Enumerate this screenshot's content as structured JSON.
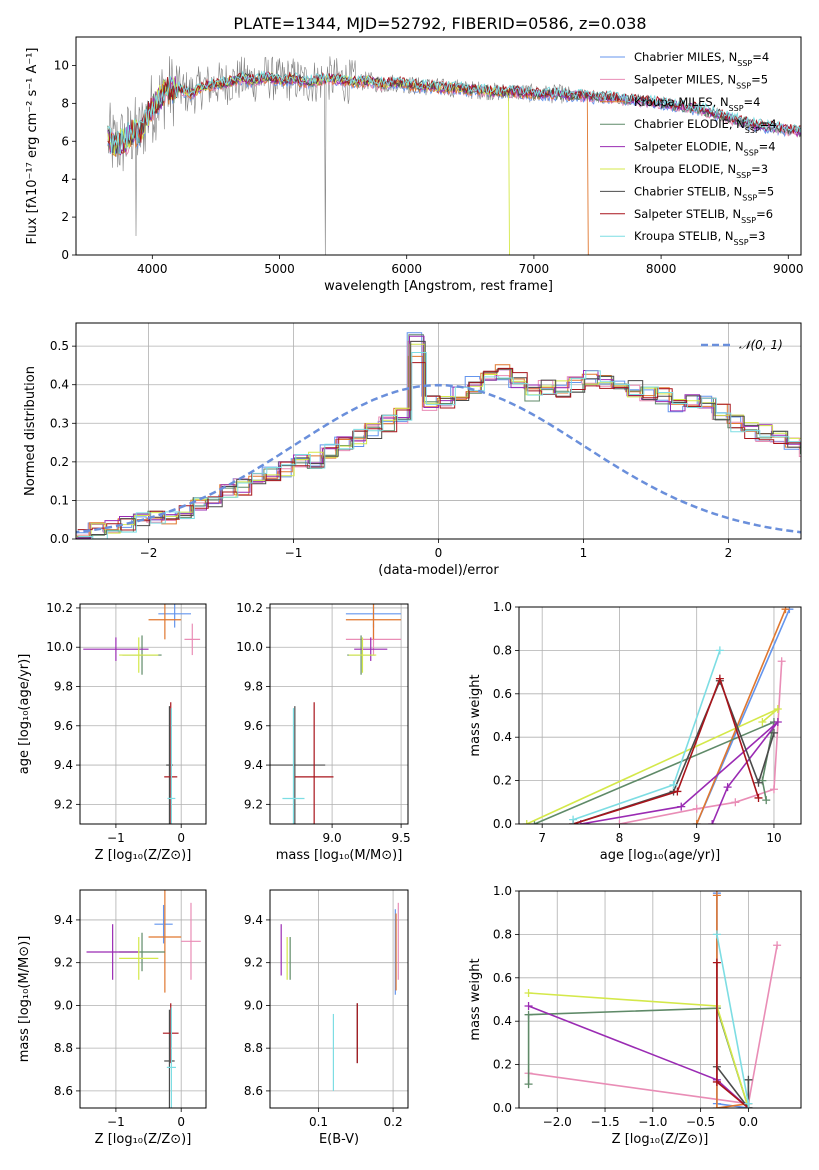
{
  "figure": {
    "title": "PLATE=1344, MJD=52792, FIBERID=0586, z=0.038"
  },
  "colors": {
    "Chabrier MILES": "#6495ED",
    "Salpeter MILES": "#E98DB6",
    "Kroupa MILES": "#E0772F",
    "Chabrier ELODIE": "#5F8A68",
    "Salpeter ELODIE": "#9A2BB3",
    "Kroupa ELODIE": "#D4E84A",
    "Chabrier STELIB": "#4B4B4B",
    "Salpeter STELIB": "#A8141B",
    "Kroupa STELIB": "#7DDDE3",
    "data": "#808080",
    "normal": "#6A8FDB"
  },
  "chart_data": [
    {
      "id": "spectrum",
      "type": "line",
      "xlabel": "wavelength [Angstrom, rest frame]",
      "ylabel": "Flux [fλ10⁻¹⁷ erg cm⁻² s⁻¹ A⁻¹]",
      "xlim": [
        3400,
        9100
      ],
      "ylim": [
        0,
        11.5
      ],
      "xticks": [
        4000,
        5000,
        6000,
        7000,
        8000,
        9000
      ],
      "yticks": [
        0,
        2,
        4,
        6,
        8,
        10
      ],
      "grid": false,
      "legend_position": "top-right",
      "legend": [
        {
          "name": "Chabrier MILES",
          "nssp": "4"
        },
        {
          "name": "Salpeter MILES",
          "nssp": "5"
        },
        {
          "name": "Kroupa MILES",
          "nssp": "4"
        },
        {
          "name": "Chabrier ELODIE",
          "nssp": "4"
        },
        {
          "name": "Salpeter ELODIE",
          "nssp": "4"
        },
        {
          "name": "Kroupa ELODIE",
          "nssp": "3"
        },
        {
          "name": "Chabrier STELIB",
          "nssp": "5"
        },
        {
          "name": "Salpeter STELIB",
          "nssp": "6"
        },
        {
          "name": "Kroupa STELIB",
          "nssp": "3"
        }
      ],
      "continuum": {
        "wavelength": [
          3650,
          3700,
          3750,
          3800,
          3850,
          3900,
          3950,
          4000,
          4050,
          4100,
          4200,
          4300,
          4400,
          4500,
          4600,
          4700,
          4800,
          4900,
          5000,
          5100,
          5200,
          5300,
          5400,
          5500,
          5600,
          5700,
          5800,
          5900,
          6000,
          6100,
          6200,
          6300,
          6400,
          6500,
          6600,
          6700,
          6800,
          6900,
          7000,
          7100,
          7200,
          7300,
          7400,
          7500,
          7600,
          7700,
          7800,
          7900,
          8000,
          8100,
          8200,
          8300,
          8400,
          8500,
          8600,
          8700,
          8800,
          8900,
          9000,
          9100
        ],
        "flux": [
          6.2,
          5.8,
          5.9,
          6.1,
          6.5,
          6.3,
          7.2,
          7.8,
          8.2,
          8.6,
          8.8,
          8.5,
          8.9,
          9.0,
          9.1,
          9.3,
          9.2,
          9.4,
          9.2,
          9.3,
          9.1,
          9.2,
          9.3,
          9.2,
          9.1,
          9.2,
          9.0,
          9.1,
          9.0,
          8.9,
          8.9,
          8.8,
          8.8,
          8.7,
          8.7,
          8.6,
          8.6,
          8.6,
          8.5,
          8.5,
          8.5,
          8.4,
          8.4,
          8.3,
          8.3,
          8.2,
          8.2,
          8.1,
          8.0,
          7.9,
          7.8,
          7.7,
          7.5,
          7.3,
          7.1,
          6.9,
          6.8,
          6.7,
          6.6,
          6.5
        ]
      },
      "cutoffs": [
        {
          "series": "Kroupa MILES",
          "max_wavelength": 7420
        },
        {
          "series": "Kroupa ELODIE",
          "max_wavelength": 6800
        }
      ]
    },
    {
      "id": "residuals",
      "type": "step",
      "xlabel": "(data-model)/error",
      "ylabel": "Normed distribution",
      "xlim": [
        -2.5,
        2.5
      ],
      "ylim": [
        0,
        0.56
      ],
      "xticks": [
        -2,
        -1,
        0,
        1,
        2
      ],
      "yticks": [
        0.0,
        0.1,
        0.2,
        0.3,
        0.4,
        0.5
      ],
      "grid": true,
      "legend_position": "top-right",
      "legend": [
        "𝒩(0, 1)"
      ],
      "bin_width": 0.1,
      "bin_start": -2.5,
      "base_histogram": [
        0.018,
        0.022,
        0.028,
        0.04,
        0.048,
        0.055,
        0.06,
        0.068,
        0.085,
        0.1,
        0.12,
        0.135,
        0.15,
        0.165,
        0.18,
        0.2,
        0.205,
        0.225,
        0.25,
        0.262,
        0.28,
        0.3,
        0.32,
        0.335,
        0.35,
        0.36,
        0.38,
        0.4,
        0.415,
        0.43,
        0.41,
        0.38,
        0.39,
        0.39,
        0.4,
        0.415,
        0.41,
        0.405,
        0.39,
        0.38,
        0.37,
        0.35,
        0.36,
        0.35,
        0.33,
        0.3,
        0.28,
        0.275,
        0.26,
        0.24,
        0.23,
        0.2,
        0.18,
        0.15,
        0.13,
        0.11,
        0.09,
        0.08,
        0.075,
        0.07,
        0.065,
        0.058,
        0.05,
        0.045,
        0.04,
        0.035,
        0.033,
        0.03,
        0.032,
        0.034,
        0.035,
        0.036
      ]
    },
    {
      "id": "age-vs-Z",
      "type": "errorbar",
      "xlabel": "Z [log₁₀(Z/Z⊙)]",
      "ylabel": "age  [log₁₀(age/yr)]",
      "xlim": [
        -1.55,
        0.38
      ],
      "ylim": [
        9.1,
        10.22
      ],
      "xticks": [
        -1,
        0
      ],
      "yticks": [
        9.2,
        9.4,
        9.6,
        9.8,
        10.0,
        10.2
      ],
      "grid": true,
      "points": [
        {
          "series": "Chabrier MILES",
          "x": -0.1,
          "y": 10.17,
          "xerr": 0.25,
          "yerr": 0.07
        },
        {
          "series": "Salpeter MILES",
          "x": 0.17,
          "y": 10.04,
          "xerr": 0.12,
          "yerr": 0.08
        },
        {
          "series": "Kroupa MILES",
          "x": -0.25,
          "y": 10.14,
          "xerr": 0.25,
          "yerr": 0.1
        },
        {
          "series": "Chabrier ELODIE",
          "x": -0.6,
          "y": 9.96,
          "xerr": 0.3,
          "yerr": 0.1
        },
        {
          "series": "Salpeter ELODIE",
          "x": -1.0,
          "y": 9.99,
          "xerr": 0.5,
          "yerr": 0.06
        },
        {
          "series": "Kroupa ELODIE",
          "x": -0.65,
          "y": 9.96,
          "xerr": 0.3,
          "yerr": 0.09
        },
        {
          "series": "Chabrier STELIB",
          "x": -0.18,
          "y": 9.4,
          "xerr": 0.05,
          "yerr": 0.3
        },
        {
          "series": "Salpeter STELIB",
          "x": -0.16,
          "y": 9.34,
          "xerr": 0.1,
          "yerr": 0.38
        },
        {
          "series": "Kroupa STELIB",
          "x": -0.15,
          "y": 9.23,
          "xerr": 0.06,
          "yerr": 0.46
        }
      ]
    },
    {
      "id": "age-vs-mass",
      "type": "errorbar",
      "xlabel": "mass [log₁₀(M/M⊙)]",
      "ylabel": "",
      "xlim": [
        8.55,
        9.55
      ],
      "ylim": [
        9.1,
        10.22
      ],
      "xticks": [
        8.5,
        9.0,
        9.5
      ],
      "yticks": [
        9.2,
        9.4,
        9.6,
        9.8,
        10.0,
        10.2
      ],
      "grid": true,
      "points": [
        {
          "series": "Chabrier MILES",
          "x": 9.3,
          "y": 10.17,
          "xerr": 0.2,
          "yerr": 0.07
        },
        {
          "series": "Salpeter MILES",
          "x": 9.3,
          "y": 10.04,
          "xerr": 0.2,
          "yerr": 0.08
        },
        {
          "series": "Kroupa MILES",
          "x": 9.3,
          "y": 10.14,
          "xerr": 0.2,
          "yerr": 0.1
        },
        {
          "series": "Chabrier ELODIE",
          "x": 9.21,
          "y": 9.96,
          "xerr": 0.1,
          "yerr": 0.1
        },
        {
          "series": "Salpeter ELODIE",
          "x": 9.28,
          "y": 9.99,
          "xerr": 0.12,
          "yerr": 0.06
        },
        {
          "series": "Kroupa ELODIE",
          "x": 9.22,
          "y": 9.96,
          "xerr": 0.1,
          "yerr": 0.09
        },
        {
          "series": "Chabrier STELIB",
          "x": 8.73,
          "y": 9.4,
          "xerr": 0.22,
          "yerr": 0.3
        },
        {
          "series": "Salpeter STELIB",
          "x": 8.87,
          "y": 9.34,
          "xerr": 0.14,
          "yerr": 0.38
        },
        {
          "series": "Kroupa STELIB",
          "x": 8.72,
          "y": 9.23,
          "xerr": 0.08,
          "yerr": 0.46
        }
      ]
    },
    {
      "id": "weight-vs-age",
      "type": "line",
      "xlabel": "age  [log₁₀(age/yr)]",
      "ylabel": "mass weight",
      "xlim": [
        6.7,
        10.35
      ],
      "ylim": [
        0,
        1
      ],
      "xticks": [
        7,
        8,
        9,
        10
      ],
      "yticks": [
        0.0,
        0.2,
        0.4,
        0.6,
        0.8,
        1.0
      ],
      "grid": true,
      "series": [
        {
          "name": "Chabrier MILES",
          "x": [
            9.0,
            10.2
          ],
          "y": [
            0.0,
            0.99
          ]
        },
        {
          "name": "Salpeter MILES",
          "x": [
            8.0,
            9.0,
            9.5,
            10.0,
            10.1
          ],
          "y": [
            0.0,
            0.07,
            0.1,
            0.16,
            0.75
          ]
        },
        {
          "name": "Kroupa MILES",
          "x": [
            9.0,
            10.15
          ],
          "y": [
            0.0,
            0.99
          ]
        },
        {
          "name": "Chabrier ELODIE",
          "x": [
            6.9,
            10.0,
            9.85,
            9.9
          ],
          "y": [
            0.0,
            0.47,
            0.2,
            0.11
          ]
        },
        {
          "name": "Salpeter ELODIE",
          "x": [
            7.5,
            8.8,
            10.05,
            9.4,
            9.2
          ],
          "y": [
            0.0,
            0.08,
            0.47,
            0.17,
            0.0
          ]
        },
        {
          "name": "Kroupa ELODIE",
          "x": [
            6.8,
            10.05,
            9.85
          ],
          "y": [
            0.0,
            0.53,
            0.47
          ]
        },
        {
          "name": "Chabrier STELIB",
          "x": [
            7.4,
            8.7,
            9.3,
            9.8,
            10.0
          ],
          "y": [
            0.0,
            0.15,
            0.66,
            0.19,
            0.42
          ]
        },
        {
          "name": "Salpeter STELIB",
          "x": [
            7.4,
            8.75,
            9.3,
            9.8
          ],
          "y": [
            0.0,
            0.15,
            0.67,
            0.12
          ]
        },
        {
          "name": "Kroupa STELIB",
          "x": [
            7.4,
            8.7,
            9.3
          ],
          "y": [
            0.02,
            0.18,
            0.8
          ]
        }
      ]
    },
    {
      "id": "mass-vs-Z",
      "type": "errorbar",
      "xlabel": "Z [log₁₀(Z/Z⊙)]",
      "ylabel": "mass [log₁₀(M/M⊙)]",
      "xlim": [
        -1.55,
        0.38
      ],
      "ylim": [
        8.52,
        9.54
      ],
      "xticks": [
        -1,
        0
      ],
      "yticks": [
        8.6,
        8.8,
        9.0,
        9.2,
        9.4
      ],
      "grid": true,
      "points": [
        {
          "series": "Chabrier MILES",
          "x": -0.27,
          "y": 9.38,
          "xerr": 0.14,
          "yerr": 0.09
        },
        {
          "series": "Salpeter MILES",
          "x": 0.15,
          "y": 9.3,
          "xerr": 0.15,
          "yerr": 0.18
        },
        {
          "series": "Kroupa MILES",
          "x": -0.25,
          "y": 9.32,
          "xerr": 0.25,
          "yerr": 0.26
        },
        {
          "series": "Chabrier ELODIE",
          "x": -0.6,
          "y": 9.25,
          "xerr": 0.35,
          "yerr": 0.09
        },
        {
          "series": "Salpeter ELODIE",
          "x": -1.05,
          "y": 9.25,
          "xerr": 0.4,
          "yerr": 0.13
        },
        {
          "series": "Kroupa ELODIE",
          "x": -0.65,
          "y": 9.22,
          "xerr": 0.3,
          "yerr": 0.1
        },
        {
          "series": "Chabrier STELIB",
          "x": -0.18,
          "y": 8.74,
          "xerr": 0.08,
          "yerr": 0.24
        },
        {
          "series": "Salpeter STELIB",
          "x": -0.16,
          "y": 8.87,
          "xerr": 0.12,
          "yerr": 0.14
        },
        {
          "series": "Kroupa STELIB",
          "x": -0.15,
          "y": 8.71,
          "xerr": 0.07,
          "yerr": 0.28
        }
      ]
    },
    {
      "id": "mass-vs-ebv",
      "type": "errorbar",
      "xlabel": "E(B-V)",
      "ylabel": "",
      "xlim": [
        0.035,
        0.22
      ],
      "ylim": [
        8.52,
        9.54
      ],
      "xticks": [
        0.1,
        0.2
      ],
      "yticks": [
        8.6,
        8.8,
        9.0,
        9.2,
        9.4
      ],
      "grid": true,
      "points": [
        {
          "series": "Chabrier MILES",
          "x": 0.203,
          "y": 9.25,
          "xerr": 0,
          "yerr": 0.2
        },
        {
          "series": "Salpeter MILES",
          "x": 0.207,
          "y": 9.3,
          "xerr": 0,
          "yerr": 0.18
        },
        {
          "series": "Kroupa MILES",
          "x": 0.204,
          "y": 9.25,
          "xerr": 0,
          "yerr": 0.18
        },
        {
          "series": "Chabrier ELODIE",
          "x": 0.062,
          "y": 9.22,
          "xerr": 0,
          "yerr": 0.1
        },
        {
          "series": "Salpeter ELODIE",
          "x": 0.05,
          "y": 9.26,
          "xerr": 0,
          "yerr": 0.12
        },
        {
          "series": "Kroupa ELODIE",
          "x": 0.058,
          "y": 9.22,
          "xerr": 0,
          "yerr": 0.1
        },
        {
          "series": "Chabrier STELIB",
          "x": 0.152,
          "y": 8.87,
          "xerr": 0,
          "yerr": 0.14
        },
        {
          "series": "Salpeter STELIB",
          "x": 0.152,
          "y": 8.87,
          "xerr": 0,
          "yerr": 0.14
        },
        {
          "series": "Kroupa STELIB",
          "x": 0.12,
          "y": 8.78,
          "xerr": 0,
          "yerr": 0.18
        }
      ]
    },
    {
      "id": "weight-vs-Z",
      "type": "line",
      "xlabel": "Z [log₁₀(Z/Z⊙)]",
      "ylabel": "mass weight",
      "xlim": [
        -2.4,
        0.55
      ],
      "ylim": [
        0,
        1
      ],
      "xticks": [
        -2.0,
        -1.5,
        -1.0,
        -0.5,
        0.0
      ],
      "yticks": [
        0.0,
        0.2,
        0.4,
        0.6,
        0.8,
        1.0
      ],
      "grid": true,
      "series": [
        {
          "name": "Chabrier MILES",
          "x": [
            -0.33,
            -0.33,
            0.0
          ],
          "y": [
            0.99,
            0.02,
            0.0
          ]
        },
        {
          "name": "Salpeter MILES",
          "x": [
            -2.3,
            0.0,
            0.3
          ],
          "y": [
            0.16,
            0.02,
            0.75
          ]
        },
        {
          "name": "Kroupa MILES",
          "x": [
            -0.33,
            -0.33,
            0.0
          ],
          "y": [
            0.98,
            0.0,
            0.02
          ]
        },
        {
          "name": "Chabrier ELODIE",
          "x": [
            -2.3,
            -2.3,
            -0.33,
            0.0
          ],
          "y": [
            0.11,
            0.43,
            0.46,
            0.0
          ]
        },
        {
          "name": "Salpeter ELODIE",
          "x": [
            -2.3,
            -0.33,
            0.0
          ],
          "y": [
            0.47,
            0.13,
            0.0
          ]
        },
        {
          "name": "Kroupa ELODIE",
          "x": [
            -2.3,
            -0.33,
            0.0
          ],
          "y": [
            0.53,
            0.47,
            0.0
          ]
        },
        {
          "name": "Chabrier STELIB",
          "x": [
            -0.33,
            0.0,
            0.0
          ],
          "y": [
            0.19,
            0.0,
            0.13
          ]
        },
        {
          "name": "Salpeter STELIB",
          "x": [
            -0.33,
            -0.33,
            0.0
          ],
          "y": [
            0.67,
            0.12,
            0.0
          ]
        },
        {
          "name": "Kroupa STELIB",
          "x": [
            -0.33,
            0.0,
            0.0
          ],
          "y": [
            0.8,
            0.02,
            0.0
          ]
        }
      ]
    }
  ]
}
